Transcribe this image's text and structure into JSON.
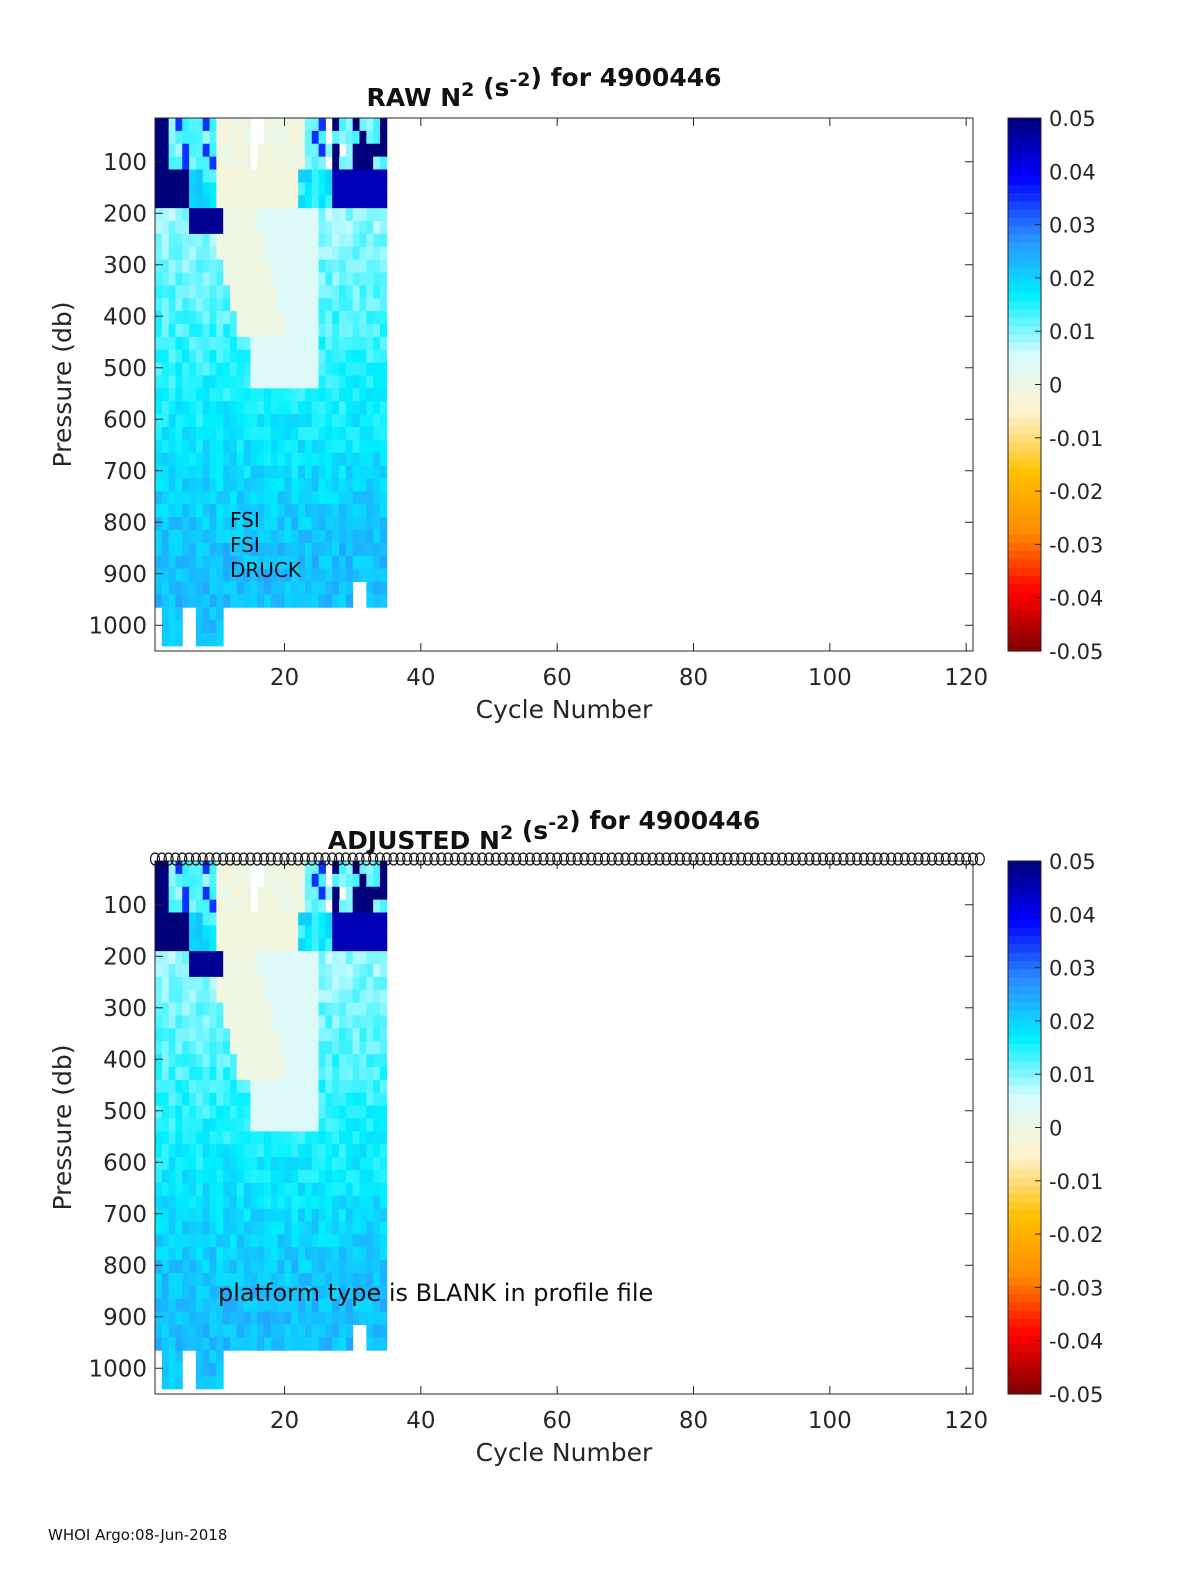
{
  "footer": "WHOI Argo:08-Jun-2018",
  "colormap": {
    "stops": [
      "#7f0000",
      "#ff0000",
      "#ff8c00",
      "#ffc000",
      "#fff2cc",
      "#d8fbff",
      "#00f0ff",
      "#2c8cff",
      "#0000ff",
      "#00007a"
    ],
    "nan_color": "#ffffff"
  },
  "colorbar": {
    "min": -0.05,
    "max": 0.05,
    "ticks": [
      0.05,
      0.04,
      0.03,
      0.02,
      0.01,
      0,
      -0.01,
      -0.02,
      -0.03,
      -0.04,
      -0.05
    ],
    "tick_labels": [
      "0.05",
      "0.04",
      "0.03",
      "0.02",
      "0.01",
      "0",
      "-0.01",
      "-0.02",
      "-0.03",
      "-0.04",
      "-0.05"
    ]
  },
  "chart_data": [
    {
      "type": "heatmap",
      "id": "raw",
      "title": {
        "main": "RAW N",
        "sup1": "2",
        "mid": " (s",
        "sup2": "-2",
        "tail": ") for 4900446"
      },
      "xlabel": "Cycle Number",
      "ylabel": "Pressure (db)",
      "xlim": [
        1,
        121
      ],
      "ylim": [
        1050,
        15
      ],
      "xticks": [
        20,
        40,
        60,
        80,
        100,
        120
      ],
      "yticks": [
        100,
        200,
        300,
        400,
        500,
        600,
        700,
        800,
        900,
        1000
      ],
      "data_cycles": [
        1,
        34
      ],
      "annotations": [
        "FSI",
        "FSI",
        "DRUCK"
      ],
      "profile_markers": false
    },
    {
      "type": "heatmap",
      "id": "adjusted",
      "title": {
        "main": "ADJUSTED N",
        "sup1": "2",
        "mid": " (s",
        "sup2": "-2",
        "tail": ") for 4900446"
      },
      "xlabel": "Cycle Number",
      "ylabel": "Pressure (db)",
      "xlim": [
        1,
        121
      ],
      "ylim": [
        1050,
        15
      ],
      "xticks": [
        20,
        40,
        60,
        80,
        100,
        120
      ],
      "yticks": [
        100,
        200,
        300,
        400,
        500,
        600,
        700,
        800,
        900,
        1000
      ],
      "data_cycles": [
        1,
        34
      ],
      "annotations": [
        "platform type is BLANK in profile file"
      ],
      "profile_markers": true
    }
  ]
}
